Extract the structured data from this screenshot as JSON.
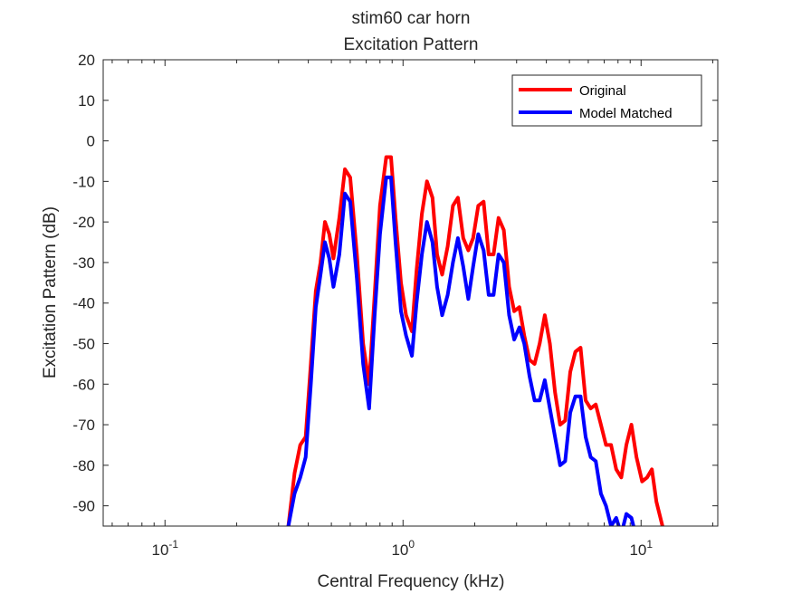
{
  "chart_data": {
    "type": "line",
    "title": "stim60 car horn",
    "subtitle": "Excitation Pattern",
    "xlabel": "Central Frequency (kHz)",
    "ylabel": "Excitation Pattern (dB)",
    "xscale": "log",
    "xlim": [
      0.055,
      21
    ],
    "ylim": [
      -95,
      20
    ],
    "yticks": [
      20,
      10,
      0,
      -10,
      -20,
      -30,
      -40,
      -50,
      -60,
      -70,
      -80,
      -90
    ],
    "ytick_labels": [
      "20",
      "10",
      "0",
      "-10",
      "-20",
      "-30",
      "-40",
      "-50",
      "-60",
      "-70",
      "-80",
      "-90"
    ],
    "xticks": [
      {
        "value": 0.1,
        "base": "10",
        "exp": "-1"
      },
      {
        "value": 1,
        "base": "10",
        "exp": "0"
      },
      {
        "value": 10,
        "base": "10",
        "exp": "1"
      }
    ],
    "grid": false,
    "legend": "top-right",
    "series": [
      {
        "name": "Original",
        "color": "#ff0000",
        "x": [
          0.33,
          0.35,
          0.37,
          0.39,
          0.41,
          0.43,
          0.45,
          0.47,
          0.49,
          0.51,
          0.54,
          0.57,
          0.6,
          0.64,
          0.68,
          0.72,
          0.76,
          0.8,
          0.85,
          0.89,
          0.93,
          0.98,
          1.03,
          1.09,
          1.14,
          1.2,
          1.26,
          1.33,
          1.39,
          1.46,
          1.54,
          1.62,
          1.7,
          1.79,
          1.88,
          1.97,
          2.07,
          2.18,
          2.29,
          2.4,
          2.52,
          2.65,
          2.79,
          2.93,
          3.08,
          3.23,
          3.4,
          3.57,
          3.75,
          3.94,
          4.14,
          4.35,
          4.57,
          4.8,
          5.04,
          5.3,
          5.57,
          5.85,
          6.14,
          6.45,
          6.78,
          7.12,
          7.48,
          7.86,
          8.26,
          8.67,
          9.11,
          9.57,
          10.1,
          10.6,
          11.1,
          11.6,
          12.3
        ],
        "y": [
          -95,
          -82,
          -75,
          -73,
          -55,
          -37,
          -30,
          -20,
          -23,
          -29,
          -19,
          -7,
          -9,
          -28,
          -50,
          -60,
          -38,
          -16,
          -4,
          -4,
          -19,
          -35,
          -43,
          -47,
          -32,
          -18,
          -10,
          -14,
          -28,
          -33,
          -26,
          -16,
          -14,
          -24,
          -27,
          -24,
          -16,
          -15,
          -28,
          -28,
          -19,
          -22,
          -36,
          -42,
          -41,
          -48,
          -54,
          -55,
          -50,
          -43,
          -50,
          -62,
          -70,
          -69,
          -57,
          -52,
          -51,
          -64,
          -66,
          -65,
          -70,
          -75,
          -75,
          -81,
          -83,
          -75,
          -70,
          -78,
          -84,
          -83,
          -81,
          -89,
          -95
        ]
      },
      {
        "name": "Model Matched",
        "color": "#0000ff",
        "x": [
          0.33,
          0.35,
          0.37,
          0.39,
          0.41,
          0.43,
          0.45,
          0.47,
          0.49,
          0.51,
          0.54,
          0.57,
          0.6,
          0.64,
          0.68,
          0.72,
          0.76,
          0.8,
          0.85,
          0.89,
          0.93,
          0.98,
          1.03,
          1.09,
          1.14,
          1.2,
          1.26,
          1.33,
          1.39,
          1.46,
          1.54,
          1.62,
          1.7,
          1.79,
          1.88,
          1.97,
          2.07,
          2.18,
          2.29,
          2.4,
          2.52,
          2.65,
          2.79,
          2.93,
          3.08,
          3.23,
          3.4,
          3.57,
          3.75,
          3.94,
          4.14,
          4.35,
          4.57,
          4.8,
          5.04,
          5.3,
          5.57,
          5.85,
          6.14,
          6.45,
          6.78,
          7.12,
          7.48,
          7.86,
          8.26,
          8.67,
          9.11,
          9.57
        ],
        "y": [
          -95,
          -87,
          -83,
          -78,
          -60,
          -41,
          -33,
          -25,
          -29,
          -36,
          -28,
          -13,
          -15,
          -34,
          -55,
          -66,
          -43,
          -23,
          -9,
          -9,
          -25,
          -42,
          -48,
          -53,
          -40,
          -28,
          -20,
          -25,
          -36,
          -43,
          -38,
          -30,
          -24,
          -31,
          -39,
          -31,
          -23,
          -27,
          -38,
          -38,
          -28,
          -30,
          -43,
          -49,
          -46,
          -50,
          -58,
          -64,
          -64,
          -59,
          -66,
          -73,
          -80,
          -79,
          -67,
          -63,
          -63,
          -73,
          -78,
          -79,
          -87,
          -90,
          -95,
          -93,
          -97,
          -92,
          -93,
          -98
        ]
      }
    ]
  }
}
